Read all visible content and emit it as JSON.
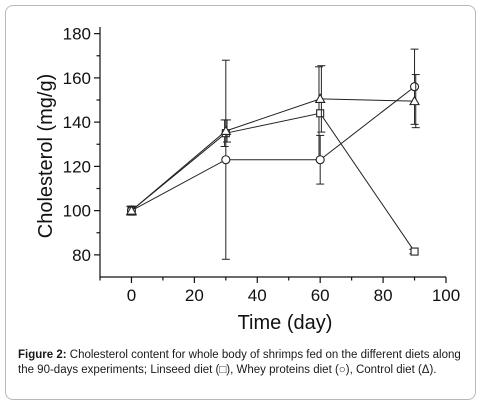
{
  "chart_data": {
    "type": "line",
    "title": "",
    "xlabel": "Time (day)",
    "ylabel": "Cholesterol (mg/g)",
    "xlim": [
      -10,
      100
    ],
    "ylim": [
      70,
      183
    ],
    "x_ticks": [
      "0",
      "20",
      "40",
      "60",
      "80",
      "100"
    ],
    "y_ticks": [
      "80",
      "100",
      "120",
      "140",
      "160",
      "180"
    ],
    "legend": "none",
    "grid": false,
    "series": [
      {
        "marker": "square",
        "points": [
          {
            "x": 0,
            "y": 100,
            "err": 2
          },
          {
            "x": 30,
            "y": 135,
            "err": 6
          },
          {
            "x": 60,
            "y": 144,
            "err": 21
          },
          {
            "x": 90,
            "y": 81.5,
            "err": 1
          }
        ]
      },
      {
        "marker": "circle",
        "points": [
          {
            "x": 0,
            "y": 100,
            "err": 2
          },
          {
            "x": 30,
            "y": 123,
            "err": 45
          },
          {
            "x": 60,
            "y": 123,
            "err": 11
          },
          {
            "x": 90,
            "y": 156,
            "err": 17
          }
        ]
      },
      {
        "marker": "triangle",
        "points": [
          {
            "x": 0,
            "y": 100,
            "err": 2
          },
          {
            "x": 30,
            "y": 136,
            "err": 5
          },
          {
            "x": 60,
            "y": 150.5,
            "err": 15
          },
          {
            "x": 90,
            "y": 149.5,
            "err": 12
          }
        ]
      }
    ]
  },
  "caption": {
    "label": "Figure 2:",
    "text": " Cholesterol content for whole body of shrimps fed on the different diets along the 90-days experiments; Linseed diet (□), Whey proteins diet (○), Control diet (Δ)."
  }
}
